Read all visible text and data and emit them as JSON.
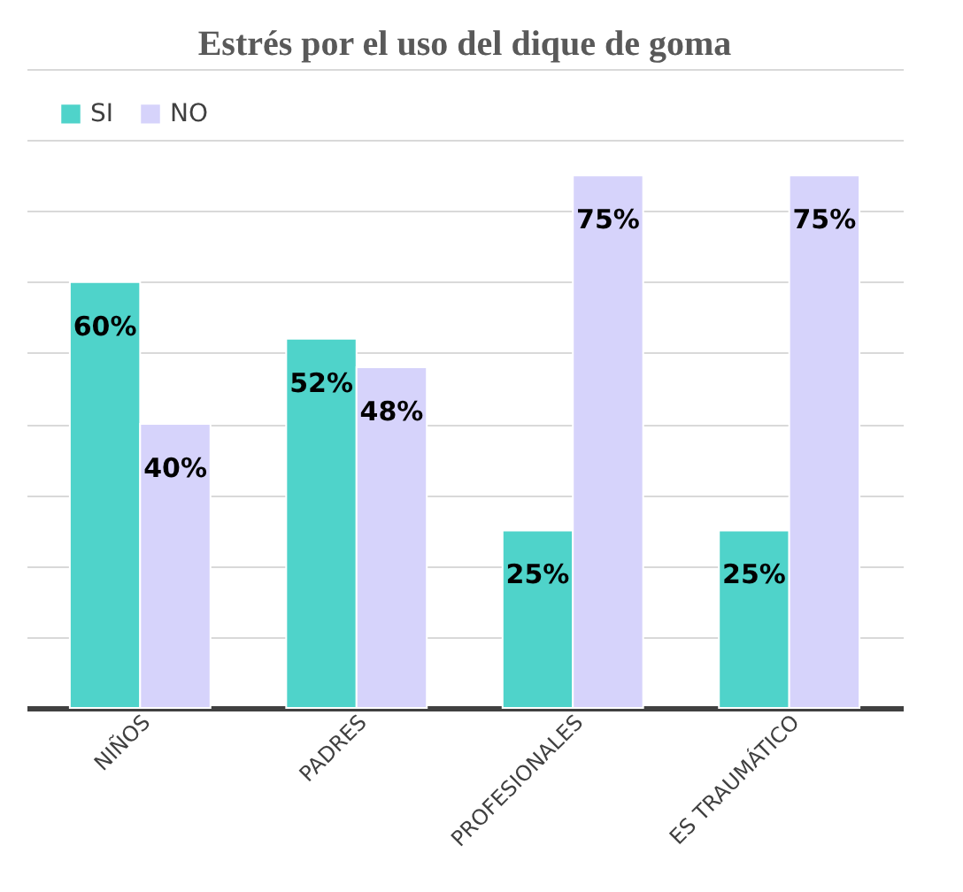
{
  "chart_data": {
    "type": "bar",
    "title": "Estrés por el uso del dique de goma",
    "categories": [
      "NIÑOS",
      "PADRES",
      "PROFESIONALES",
      "ES TRAUMÁTICO"
    ],
    "series": [
      {
        "name": "SI",
        "color": "#4fd3ca",
        "values": [
          60,
          52,
          25,
          25
        ],
        "value_labels": [
          "60%",
          "52%",
          "25%",
          "25%"
        ]
      },
      {
        "name": "NO",
        "color": "#d6d3fb",
        "values": [
          40,
          48,
          75,
          75
        ],
        "value_labels": [
          "40%",
          "48%",
          "75%",
          "75%"
        ]
      }
    ],
    "ylim": [
      0,
      90
    ],
    "yticks": [
      0,
      10,
      20,
      30,
      40,
      50,
      60,
      70,
      80,
      90
    ],
    "grid": "y",
    "tick_labels": "x",
    "legend": "top left"
  }
}
